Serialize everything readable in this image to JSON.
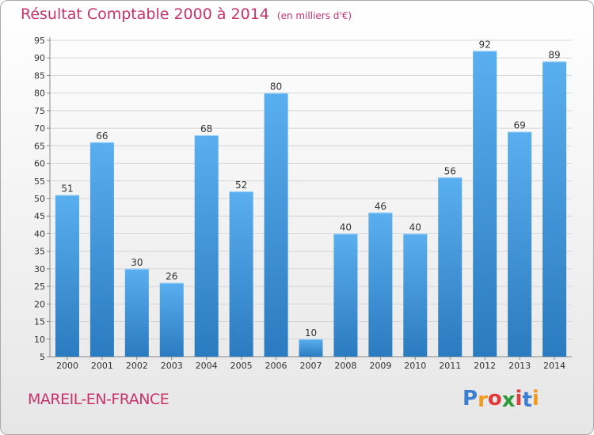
{
  "chart_data": {
    "type": "bar",
    "title": "Résultat Comptable 2000 à 2014",
    "subtitle": "(en milliers d'€)",
    "xlabel": "",
    "ylabel": "",
    "categories": [
      "2000",
      "2001",
      "2002",
      "2003",
      "2004",
      "2005",
      "2006",
      "2007",
      "2008",
      "2009",
      "2010",
      "2011",
      "2012",
      "2013",
      "2014"
    ],
    "values": [
      51,
      66,
      30,
      26,
      68,
      52,
      80,
      10,
      40,
      46,
      40,
      56,
      92,
      69,
      89
    ],
    "ylim": [
      5,
      95
    ],
    "yticks": [
      5,
      10,
      15,
      20,
      25,
      30,
      35,
      40,
      45,
      50,
      55,
      60,
      65,
      70,
      75,
      80,
      85,
      90,
      95
    ],
    "grid": true,
    "legend": "none"
  },
  "location": "MAREIL-EN-FRANCE",
  "logo": {
    "letters": [
      "P",
      "r",
      "o",
      "x",
      "i",
      "t",
      "i"
    ],
    "colors": [
      "#3b7fd0",
      "#f29b1f",
      "#e03a3a",
      "#2f9a3a",
      "#e03a3a",
      "#3b7fd0",
      "#f29b1f"
    ]
  },
  "colors": {
    "bar_light": "#5aaff0",
    "bar_dark": "#2a7bbf",
    "title": "#c8346a"
  }
}
